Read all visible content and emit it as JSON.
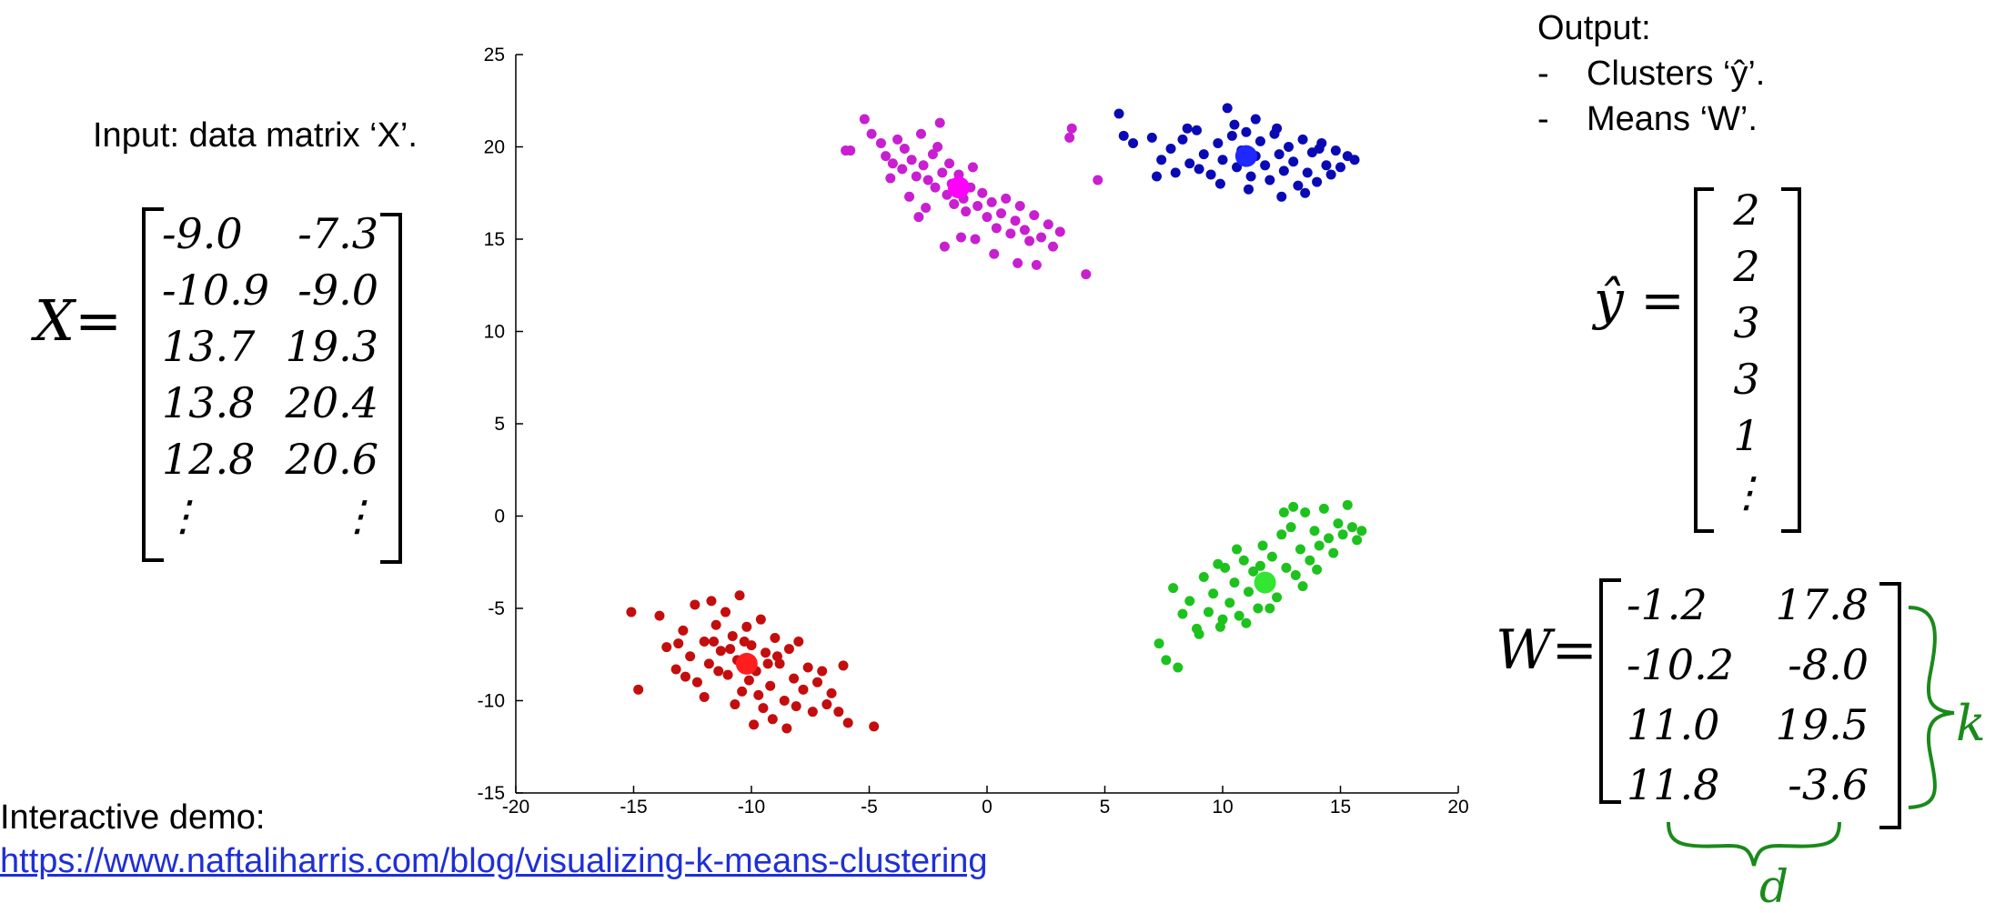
{
  "input_text": "Input: data matrix ‘X’.",
  "x_matrix": {
    "lhs": "X=",
    "rows": [
      [
        "-9.0",
        "-7.3"
      ],
      [
        "-10.9",
        "-9.0"
      ],
      [
        "13.7",
        "19.3"
      ],
      [
        "13.8",
        "20.4"
      ],
      [
        "12.8",
        "20.6"
      ],
      [
        "⋮",
        "⋮"
      ]
    ]
  },
  "output": {
    "title": "Output:",
    "bullets": [
      "Clusters ‘ŷ’.",
      "Means ‘W’."
    ]
  },
  "y_vector": {
    "lhs": "ŷ =",
    "values": [
      "2",
      "2",
      "3",
      "3",
      "1",
      "⋮"
    ]
  },
  "w_matrix": {
    "lhs": "W=",
    "rows": [
      [
        "-1.2",
        "17.8"
      ],
      [
        "-10.2",
        "-8.0"
      ],
      [
        "11.0",
        "19.5"
      ],
      [
        "11.8",
        "-3.6"
      ]
    ],
    "k_label": "k",
    "d_label": "d"
  },
  "demo": {
    "label": "Interactive demo:",
    "url": "https://www.naftaliharris.com/blog/visualizing-k-means-clustering"
  },
  "colors": {
    "magenta": "#c81fd0",
    "blue": "#0a0ab4",
    "red": "#c40d0d",
    "green": "#1ec21e",
    "annotation_green": "#1a8a1a",
    "link": "#1f2fd6"
  },
  "chart_data": {
    "type": "scatter",
    "xlim": [
      -20,
      20
    ],
    "ylim": [
      -15,
      25
    ],
    "xticks": [
      -20,
      -15,
      -10,
      -5,
      0,
      5,
      10,
      15,
      20
    ],
    "yticks": [
      -15,
      -10,
      -5,
      0,
      5,
      10,
      15,
      20,
      25
    ],
    "grid": false,
    "series": [
      {
        "color": "#c81fd0",
        "centroid_color": "#ff00ff",
        "centroid": [
          -1.2,
          17.8
        ],
        "points": [
          [
            -5.8,
            19.8
          ],
          [
            -5.2,
            21.5
          ],
          [
            -4.9,
            20.7
          ],
          [
            -4.5,
            20.2
          ],
          [
            -4.3,
            19.5
          ],
          [
            -4.0,
            19.1
          ],
          [
            -3.8,
            20.4
          ],
          [
            -3.6,
            18.8
          ],
          [
            -3.5,
            19.9
          ],
          [
            -3.2,
            19.3
          ],
          [
            -3.0,
            18.4
          ],
          [
            -2.8,
            20.7
          ],
          [
            -2.7,
            19.0
          ],
          [
            -2.5,
            18.2
          ],
          [
            -2.3,
            19.6
          ],
          [
            -2.2,
            17.8
          ],
          [
            -2.0,
            21.3
          ],
          [
            -1.9,
            18.6
          ],
          [
            -1.7,
            17.4
          ],
          [
            -1.6,
            19.1
          ],
          [
            -1.5,
            18.0
          ],
          [
            -1.4,
            16.9
          ],
          [
            -1.2,
            18.5
          ],
          [
            -1.0,
            17.2
          ],
          [
            -0.9,
            16.5
          ],
          [
            -0.7,
            17.8
          ],
          [
            -0.6,
            18.9
          ],
          [
            -0.4,
            16.8
          ],
          [
            -0.2,
            17.5
          ],
          [
            0.0,
            16.2
          ],
          [
            0.2,
            17.0
          ],
          [
            0.4,
            15.6
          ],
          [
            0.6,
            16.4
          ],
          [
            0.8,
            17.2
          ],
          [
            1.0,
            15.3
          ],
          [
            1.2,
            16.0
          ],
          [
            1.4,
            16.8
          ],
          [
            1.6,
            15.5
          ],
          [
            1.8,
            14.9
          ],
          [
            2.0,
            16.3
          ],
          [
            2.3,
            15.1
          ],
          [
            2.6,
            15.8
          ],
          [
            2.8,
            14.6
          ],
          [
            -2.9,
            16.2
          ],
          [
            -3.3,
            17.3
          ],
          [
            -1.1,
            15.1
          ],
          [
            0.3,
            14.2
          ],
          [
            2.1,
            13.6
          ],
          [
            4.2,
            13.1
          ],
          [
            4.7,
            18.2
          ],
          [
            3.6,
            21.0
          ],
          [
            3.5,
            20.5
          ],
          [
            -6.0,
            19.8
          ],
          [
            -4.1,
            18.3
          ],
          [
            -2.1,
            20.0
          ],
          [
            1.3,
            13.7
          ],
          [
            -0.5,
            15.0
          ],
          [
            -2.6,
            16.7
          ],
          [
            -1.8,
            14.6
          ],
          [
            3.1,
            15.4
          ]
        ]
      },
      {
        "color": "#0a0ab4",
        "centroid_color": "#1e28ff",
        "centroid": [
          11.0,
          19.5
        ],
        "points": [
          [
            5.6,
            21.8
          ],
          [
            5.8,
            20.6
          ],
          [
            6.2,
            20.2
          ],
          [
            7.0,
            20.5
          ],
          [
            7.4,
            19.3
          ],
          [
            7.8,
            19.9
          ],
          [
            8.0,
            18.6
          ],
          [
            8.3,
            20.4
          ],
          [
            8.6,
            19.1
          ],
          [
            8.9,
            20.9
          ],
          [
            9.2,
            19.6
          ],
          [
            9.5,
            18.5
          ],
          [
            9.8,
            20.2
          ],
          [
            10.0,
            19.3
          ],
          [
            10.2,
            22.1
          ],
          [
            10.4,
            20.6
          ],
          [
            10.6,
            18.9
          ],
          [
            10.8,
            19.8
          ],
          [
            11.0,
            20.8
          ],
          [
            11.2,
            18.4
          ],
          [
            11.4,
            19.5
          ],
          [
            11.6,
            20.3
          ],
          [
            11.8,
            19.0
          ],
          [
            12.0,
            18.2
          ],
          [
            12.2,
            20.7
          ],
          [
            12.4,
            19.6
          ],
          [
            12.6,
            18.7
          ],
          [
            12.8,
            20.0
          ],
          [
            13.0,
            19.2
          ],
          [
            13.2,
            17.9
          ],
          [
            13.4,
            20.4
          ],
          [
            13.6,
            18.6
          ],
          [
            13.8,
            19.7
          ],
          [
            14.0,
            18.1
          ],
          [
            14.2,
            20.2
          ],
          [
            14.4,
            19.0
          ],
          [
            14.6,
            18.5
          ],
          [
            14.8,
            19.8
          ],
          [
            15.0,
            18.9
          ],
          [
            15.3,
            19.5
          ],
          [
            15.6,
            19.3
          ],
          [
            13.5,
            17.5
          ],
          [
            12.5,
            17.3
          ],
          [
            11.1,
            17.7
          ],
          [
            9.0,
            18.8
          ],
          [
            7.2,
            18.4
          ],
          [
            8.5,
            21.0
          ],
          [
            10.5,
            21.2
          ],
          [
            12.3,
            21.0
          ],
          [
            14.1,
            19.9
          ],
          [
            11.4,
            21.5
          ],
          [
            9.9,
            18.0
          ]
        ]
      },
      {
        "color": "#c40d0d",
        "centroid_color": "#ff1e1e",
        "centroid": [
          -10.2,
          -8.0
        ],
        "points": [
          [
            -15.1,
            -5.2
          ],
          [
            -14.8,
            -9.4
          ],
          [
            -13.9,
            -5.4
          ],
          [
            -13.6,
            -7.1
          ],
          [
            -13.2,
            -8.3
          ],
          [
            -12.9,
            -6.2
          ],
          [
            -12.6,
            -7.6
          ],
          [
            -12.3,
            -9.0
          ],
          [
            -12.0,
            -6.8
          ],
          [
            -11.8,
            -8.0
          ],
          [
            -11.5,
            -5.9
          ],
          [
            -11.3,
            -7.3
          ],
          [
            -11.0,
            -8.6
          ],
          [
            -10.8,
            -6.5
          ],
          [
            -10.6,
            -7.8
          ],
          [
            -10.4,
            -9.5
          ],
          [
            -10.2,
            -6.0
          ],
          [
            -10.0,
            -7.0
          ],
          [
            -9.8,
            -8.4
          ],
          [
            -9.6,
            -5.6
          ],
          [
            -9.4,
            -7.4
          ],
          [
            -9.2,
            -9.2
          ],
          [
            -9.0,
            -6.6
          ],
          [
            -8.8,
            -8.0
          ],
          [
            -8.6,
            -10.0
          ],
          [
            -8.4,
            -7.2
          ],
          [
            -8.2,
            -8.8
          ],
          [
            -8.0,
            -6.8
          ],
          [
            -7.8,
            -9.4
          ],
          [
            -7.6,
            -8.2
          ],
          [
            -7.4,
            -10.6
          ],
          [
            -7.2,
            -9.0
          ],
          [
            -7.0,
            -8.4
          ],
          [
            -6.8,
            -10.2
          ],
          [
            -6.6,
            -9.6
          ],
          [
            -6.3,
            -10.6
          ],
          [
            -6.1,
            -8.1
          ],
          [
            -5.9,
            -11.2
          ],
          [
            -4.8,
            -11.4
          ],
          [
            -12.4,
            -4.8
          ],
          [
            -11.7,
            -4.6
          ],
          [
            -11.1,
            -5.2
          ],
          [
            -10.5,
            -4.3
          ],
          [
            -9.9,
            -11.3
          ],
          [
            -9.1,
            -11.0
          ],
          [
            -8.5,
            -11.5
          ],
          [
            -13.1,
            -6.9
          ],
          [
            -12.0,
            -9.8
          ],
          [
            -10.7,
            -10.2
          ],
          [
            -9.5,
            -10.4
          ],
          [
            -10.9,
            -7.2
          ],
          [
            -11.4,
            -8.4
          ],
          [
            -10.1,
            -8.9
          ],
          [
            -9.3,
            -8.0
          ],
          [
            -8.9,
            -7.6
          ],
          [
            -11.6,
            -6.8
          ],
          [
            -12.8,
            -8.7
          ],
          [
            -10.3,
            -6.8
          ],
          [
            -9.7,
            -9.7
          ],
          [
            -8.1,
            -10.3
          ]
        ]
      },
      {
        "color": "#1ec21e",
        "centroid_color": "#32e632",
        "centroid": [
          11.8,
          -3.6
        ],
        "points": [
          [
            7.3,
            -6.9
          ],
          [
            7.6,
            -7.8
          ],
          [
            7.9,
            -3.9
          ],
          [
            8.1,
            -8.2
          ],
          [
            8.3,
            -5.3
          ],
          [
            8.6,
            -4.6
          ],
          [
            8.9,
            -6.1
          ],
          [
            9.2,
            -3.3
          ],
          [
            9.4,
            -5.2
          ],
          [
            9.6,
            -4.2
          ],
          [
            9.9,
            -6.0
          ],
          [
            10.1,
            -2.8
          ],
          [
            10.3,
            -4.7
          ],
          [
            10.5,
            -3.6
          ],
          [
            10.7,
            -5.4
          ],
          [
            10.9,
            -2.4
          ],
          [
            11.1,
            -4.1
          ],
          [
            11.3,
            -3.0
          ],
          [
            11.5,
            -5.0
          ],
          [
            11.7,
            -1.6
          ],
          [
            11.9,
            -3.4
          ],
          [
            12.1,
            -2.2
          ],
          [
            12.3,
            -4.4
          ],
          [
            12.5,
            -1.0
          ],
          [
            12.7,
            -2.8
          ],
          [
            12.9,
            -0.6
          ],
          [
            13.1,
            -3.2
          ],
          [
            13.3,
            -1.8
          ],
          [
            13.5,
            0.2
          ],
          [
            13.7,
            -2.4
          ],
          [
            13.9,
            -0.8
          ],
          [
            14.1,
            -1.6
          ],
          [
            14.3,
            0.4
          ],
          [
            14.5,
            -1.2
          ],
          [
            14.7,
            -2.0
          ],
          [
            14.9,
            -0.4
          ],
          [
            15.1,
            -1.0
          ],
          [
            15.3,
            0.6
          ],
          [
            15.5,
            -0.6
          ],
          [
            15.7,
            -1.3
          ],
          [
            15.9,
            -0.8
          ],
          [
            13.0,
            0.5
          ],
          [
            12.6,
            0.2
          ],
          [
            11.0,
            -5.8
          ],
          [
            10.0,
            -5.6
          ],
          [
            9.0,
            -6.4
          ],
          [
            12.0,
            -5.0
          ],
          [
            14.0,
            -2.9
          ],
          [
            13.4,
            -3.8
          ],
          [
            10.6,
            -1.8
          ],
          [
            9.8,
            -2.6
          ],
          [
            11.6,
            -2.7
          ]
        ]
      }
    ]
  }
}
